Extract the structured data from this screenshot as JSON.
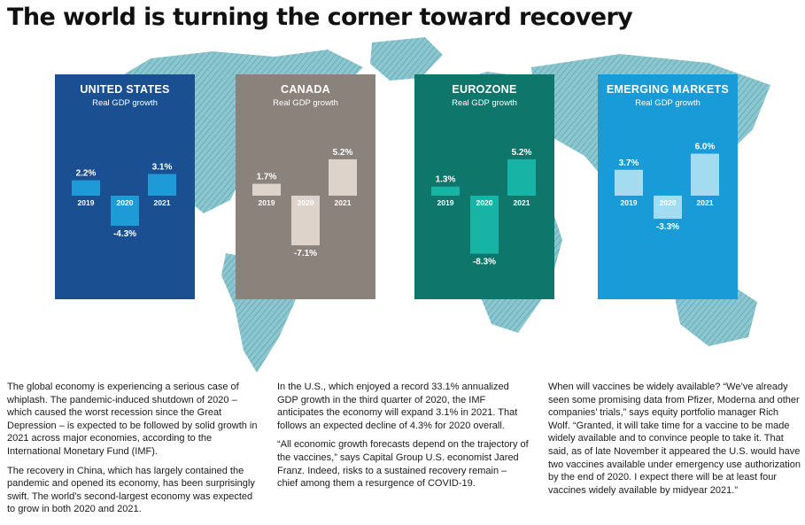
{
  "title": "The world is turning the corner toward recovery",
  "colors": {
    "us_panel": "#1a4f92",
    "us_bar": "#1e9bd7",
    "canada_panel": "#8c827c",
    "canada_bar": "#ddd3cb",
    "eurozone_panel": "#0f766b",
    "eurozone_bar": "#17b3a4",
    "em_panel": "#199bd8",
    "em_bar": "#a3dcf0",
    "map": "#7ab9c4"
  },
  "chart_data": [
    {
      "type": "bar",
      "title": "UNITED STATES",
      "subtitle": "Real GDP growth",
      "categories": [
        "2019",
        "2020",
        "2021"
      ],
      "values": [
        2.2,
        -4.3,
        3.1
      ],
      "labels": [
        "2.2%",
        "-4.3%",
        "3.1%"
      ]
    },
    {
      "type": "bar",
      "title": "CANADA",
      "subtitle": "Real GDP growth",
      "categories": [
        "2019",
        "2020",
        "2021"
      ],
      "values": [
        1.7,
        -7.1,
        5.2
      ],
      "labels": [
        "1.7%",
        "-7.1%",
        "5.2%"
      ]
    },
    {
      "type": "bar",
      "title": "EUROZONE",
      "subtitle": "Real GDP growth",
      "categories": [
        "2019",
        "2020",
        "2021"
      ],
      "values": [
        1.3,
        -8.3,
        5.2
      ],
      "labels": [
        "1.3%",
        "-8.3%",
        "5.2%"
      ]
    },
    {
      "type": "bar",
      "title": "EMERGING MARKETS",
      "subtitle": "Real GDP growth",
      "categories": [
        "2019",
        "2020",
        "2021"
      ],
      "values": [
        3.7,
        -3.3,
        6.0
      ],
      "labels": [
        "3.7%",
        "-3.3%",
        "6.0%"
      ]
    }
  ],
  "body": {
    "col1": [
      "The global economy is experiencing a serious case of whiplash. The pandemic-induced shutdown of 2020 – which caused the worst recession since the Great Depression – is expected to be followed by solid growth in 2021 across major economies, according to the International Monetary Fund (IMF).",
      "The recovery in China, which has largely contained the pandemic and opened its economy, has been surprisingly swift. The world’s second-largest economy was expected to grow in both 2020 and 2021."
    ],
    "col2": [
      "In the U.S., which enjoyed a record 33.1% annualized GDP growth in the third quarter of 2020, the IMF anticipates the economy will expand 3.1% in 2021. That follows an expected decline of 4.3% for 2020 overall.",
      "“All economic growth forecasts depend on the trajectory of the vaccines,” says Capital Group U.S. economist Jared Franz. Indeed, risks to a sustained recovery remain – chief among them a resurgence of COVID-19."
    ],
    "col3": [
      "When will vaccines be widely available? “We’ve already seen some promising data from Pfizer, Moderna and other companies’ trials,” says equity portfolio manager Rich Wolf. “Granted, it will take time for a vaccine to be made widely available and to convince people to take it. That said, as of late November it appeared the U.S. would have two vaccines available under emergency use authorization by the end of 2020. I expect there will be at least four vaccines widely available by midyear 2021.”"
    ]
  }
}
